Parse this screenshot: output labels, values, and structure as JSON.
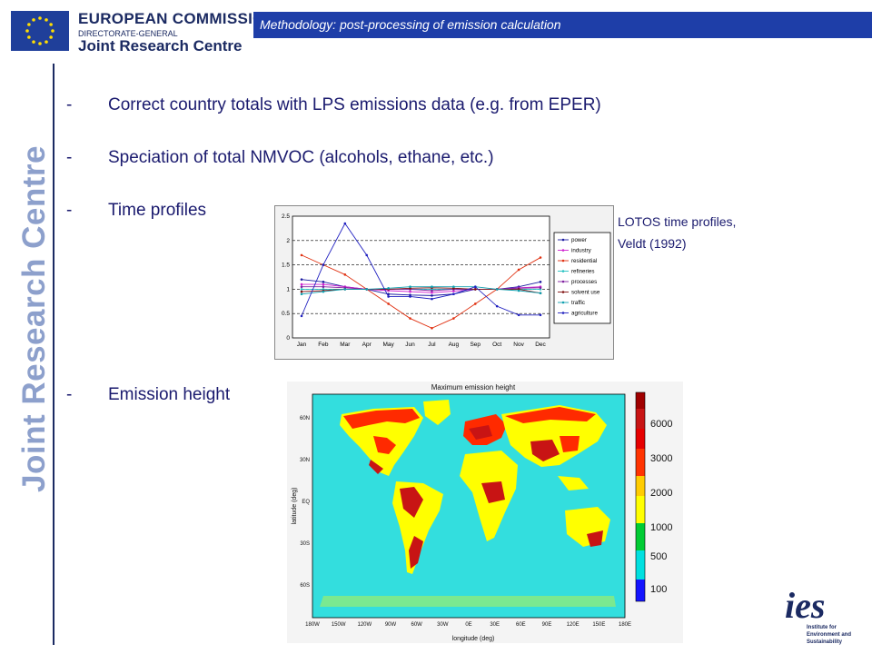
{
  "header": {
    "ec_title": "EUROPEAN COMMISSION",
    "dg": "DIRECTORATE-GENERAL",
    "jrc": "Joint Research Centre",
    "slide_title": "Methodology: post-processing of emission calculation"
  },
  "vertical_brand": "Joint Research Centre",
  "bullets": [
    {
      "dash": "-",
      "text": "Correct country totals with LPS emissions data (e.g. from EPER)"
    },
    {
      "dash": "-",
      "text": "Speciation of total NMVOC (alcohols, ethane, etc.)"
    },
    {
      "dash": "-",
      "text": "Time profiles"
    },
    {
      "dash": "-",
      "text": "Emission height"
    }
  ],
  "caption": {
    "line1": "LOTOS time profiles,",
    "line2": "Veldt (1992)"
  },
  "chart_data": [
    {
      "type": "line",
      "categories": [
        "Jan",
        "Feb",
        "Mar",
        "Apr",
        "May",
        "Jun",
        "Jul",
        "Aug",
        "Sep",
        "Oct",
        "Nov",
        "Dec"
      ],
      "ylim": [
        0,
        2.5
      ],
      "yticks": [
        "0",
        "0.5",
        "1",
        "1.5",
        "2",
        "2.5"
      ],
      "grid": true,
      "legend_position": "right",
      "series": [
        {
          "name": "power",
          "color": "#1a1aa0",
          "values": [
            1.2,
            1.15,
            1.05,
            1.0,
            0.9,
            0.88,
            0.87,
            0.9,
            1.0,
            1.0,
            1.05,
            1.15
          ]
        },
        {
          "name": "industry",
          "color": "#d020d0",
          "values": [
            1.1,
            1.1,
            1.05,
            1.0,
            0.97,
            0.95,
            0.93,
            0.96,
            1.0,
            1.0,
            1.03,
            1.05
          ]
        },
        {
          "name": "residential",
          "color": "#e03010",
          "values": [
            1.7,
            1.5,
            1.3,
            1.0,
            0.7,
            0.4,
            0.2,
            0.4,
            0.7,
            1.0,
            1.4,
            1.65
          ]
        },
        {
          "name": "refineries",
          "color": "#20c0c0",
          "values": [
            1.0,
            1.0,
            1.0,
            1.0,
            1.0,
            1.0,
            1.0,
            1.0,
            1.0,
            1.0,
            1.0,
            1.0
          ]
        },
        {
          "name": "processes",
          "color": "#8020a0",
          "values": [
            1.05,
            1.05,
            1.03,
            1.0,
            1.0,
            1.0,
            0.97,
            1.0,
            1.0,
            1.0,
            1.02,
            1.03
          ]
        },
        {
          "name": "solvent use",
          "color": "#801010",
          "values": [
            0.95,
            0.97,
            1.0,
            1.0,
            1.0,
            1.02,
            1.03,
            1.02,
            1.0,
            1.0,
            1.0,
            0.92
          ]
        },
        {
          "name": "traffic",
          "color": "#10a0b0",
          "values": [
            0.9,
            0.95,
            1.0,
            1.0,
            1.02,
            1.05,
            1.05,
            1.05,
            1.05,
            1.0,
            0.97,
            0.92
          ]
        },
        {
          "name": "agriculture",
          "color": "#2020c0",
          "values": [
            0.45,
            1.5,
            2.35,
            1.7,
            0.85,
            0.85,
            0.8,
            0.9,
            1.05,
            0.65,
            0.47,
            0.47
          ]
        }
      ]
    },
    {
      "type": "heatmap",
      "title": "Maximum emission height",
      "xlabel": "longitude (deg)",
      "ylabel": "latitude (deg)",
      "xticks": [
        "180W",
        "150W",
        "120W",
        "90W",
        "60W",
        "30W",
        "0E",
        "30E",
        "60E",
        "90E",
        "120E",
        "150E",
        "180E"
      ],
      "yticks": [
        "60N",
        "30N",
        "EQ",
        "30S",
        "60S"
      ],
      "colorbar": [
        {
          "label": "6000",
          "color": "#c81414"
        },
        {
          "label": "3000",
          "color": "#ff2a00"
        },
        {
          "label": "2000",
          "color": "#ffff00"
        },
        {
          "label": "1000",
          "color": "#ffff00"
        },
        {
          "label": "500",
          "color": "#00cc33"
        },
        {
          "label": "100",
          "color": "#00e0e0"
        }
      ]
    }
  ],
  "colors": {
    "brand_blue": "#1e3ea8",
    "text_navy": "#1a1a6e",
    "map_ocean": "#33dede"
  },
  "logos": {
    "ies": "ies",
    "ies_sub": "Institute for Environment and Sustainability"
  }
}
